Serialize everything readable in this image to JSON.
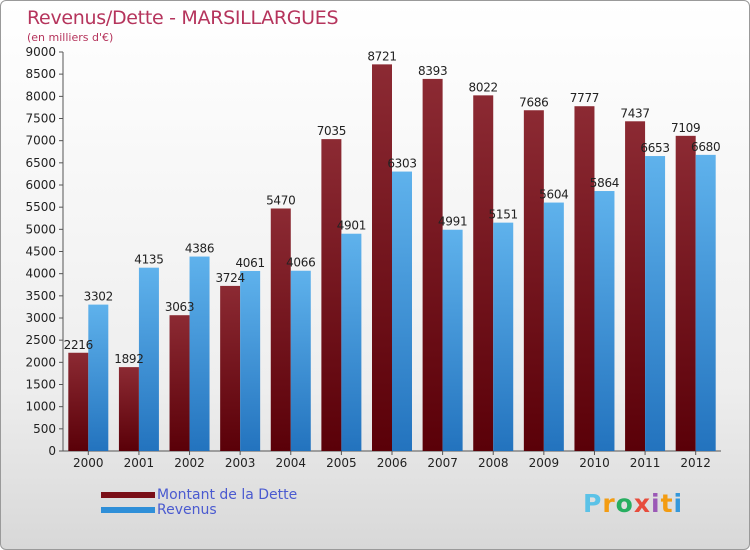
{
  "chart_data": {
    "type": "bar",
    "title": "Revenus/Dette - MARSILLARGUES",
    "subtitle": "(en milliers d'€)",
    "categories": [
      "2000",
      "2001",
      "2002",
      "2003",
      "2004",
      "2005",
      "2006",
      "2007",
      "2008",
      "2009",
      "2010",
      "2011",
      "2012"
    ],
    "series": [
      {
        "name": "Montant de la Dette",
        "color": "#7a0f17",
        "values": [
          2216,
          1892,
          3063,
          3724,
          5470,
          7035,
          8721,
          8393,
          8022,
          7686,
          7777,
          7437,
          7109
        ]
      },
      {
        "name": "Revenus",
        "color": "#2f8fd8",
        "values": [
          3302,
          4135,
          4386,
          4061,
          4066,
          4901,
          6303,
          4991,
          5151,
          5604,
          5864,
          6653,
          6680
        ]
      }
    ],
    "ylim": [
      0,
      9000
    ],
    "yticks": [
      0,
      500,
      1000,
      1500,
      2000,
      2500,
      3000,
      3500,
      4000,
      4500,
      5000,
      5500,
      6000,
      6500,
      7000,
      7500,
      8000,
      8500,
      9000
    ],
    "grid": false,
    "legend_position": "bottom-left"
  },
  "logo": {
    "letters": [
      "P",
      "r",
      "o",
      "x",
      "i",
      "t",
      "i"
    ],
    "colors": [
      "#5bc2e7",
      "#f39c12",
      "#27ae60",
      "#e74c3c",
      "#9b59b6",
      "#f39c12",
      "#3498db"
    ]
  }
}
